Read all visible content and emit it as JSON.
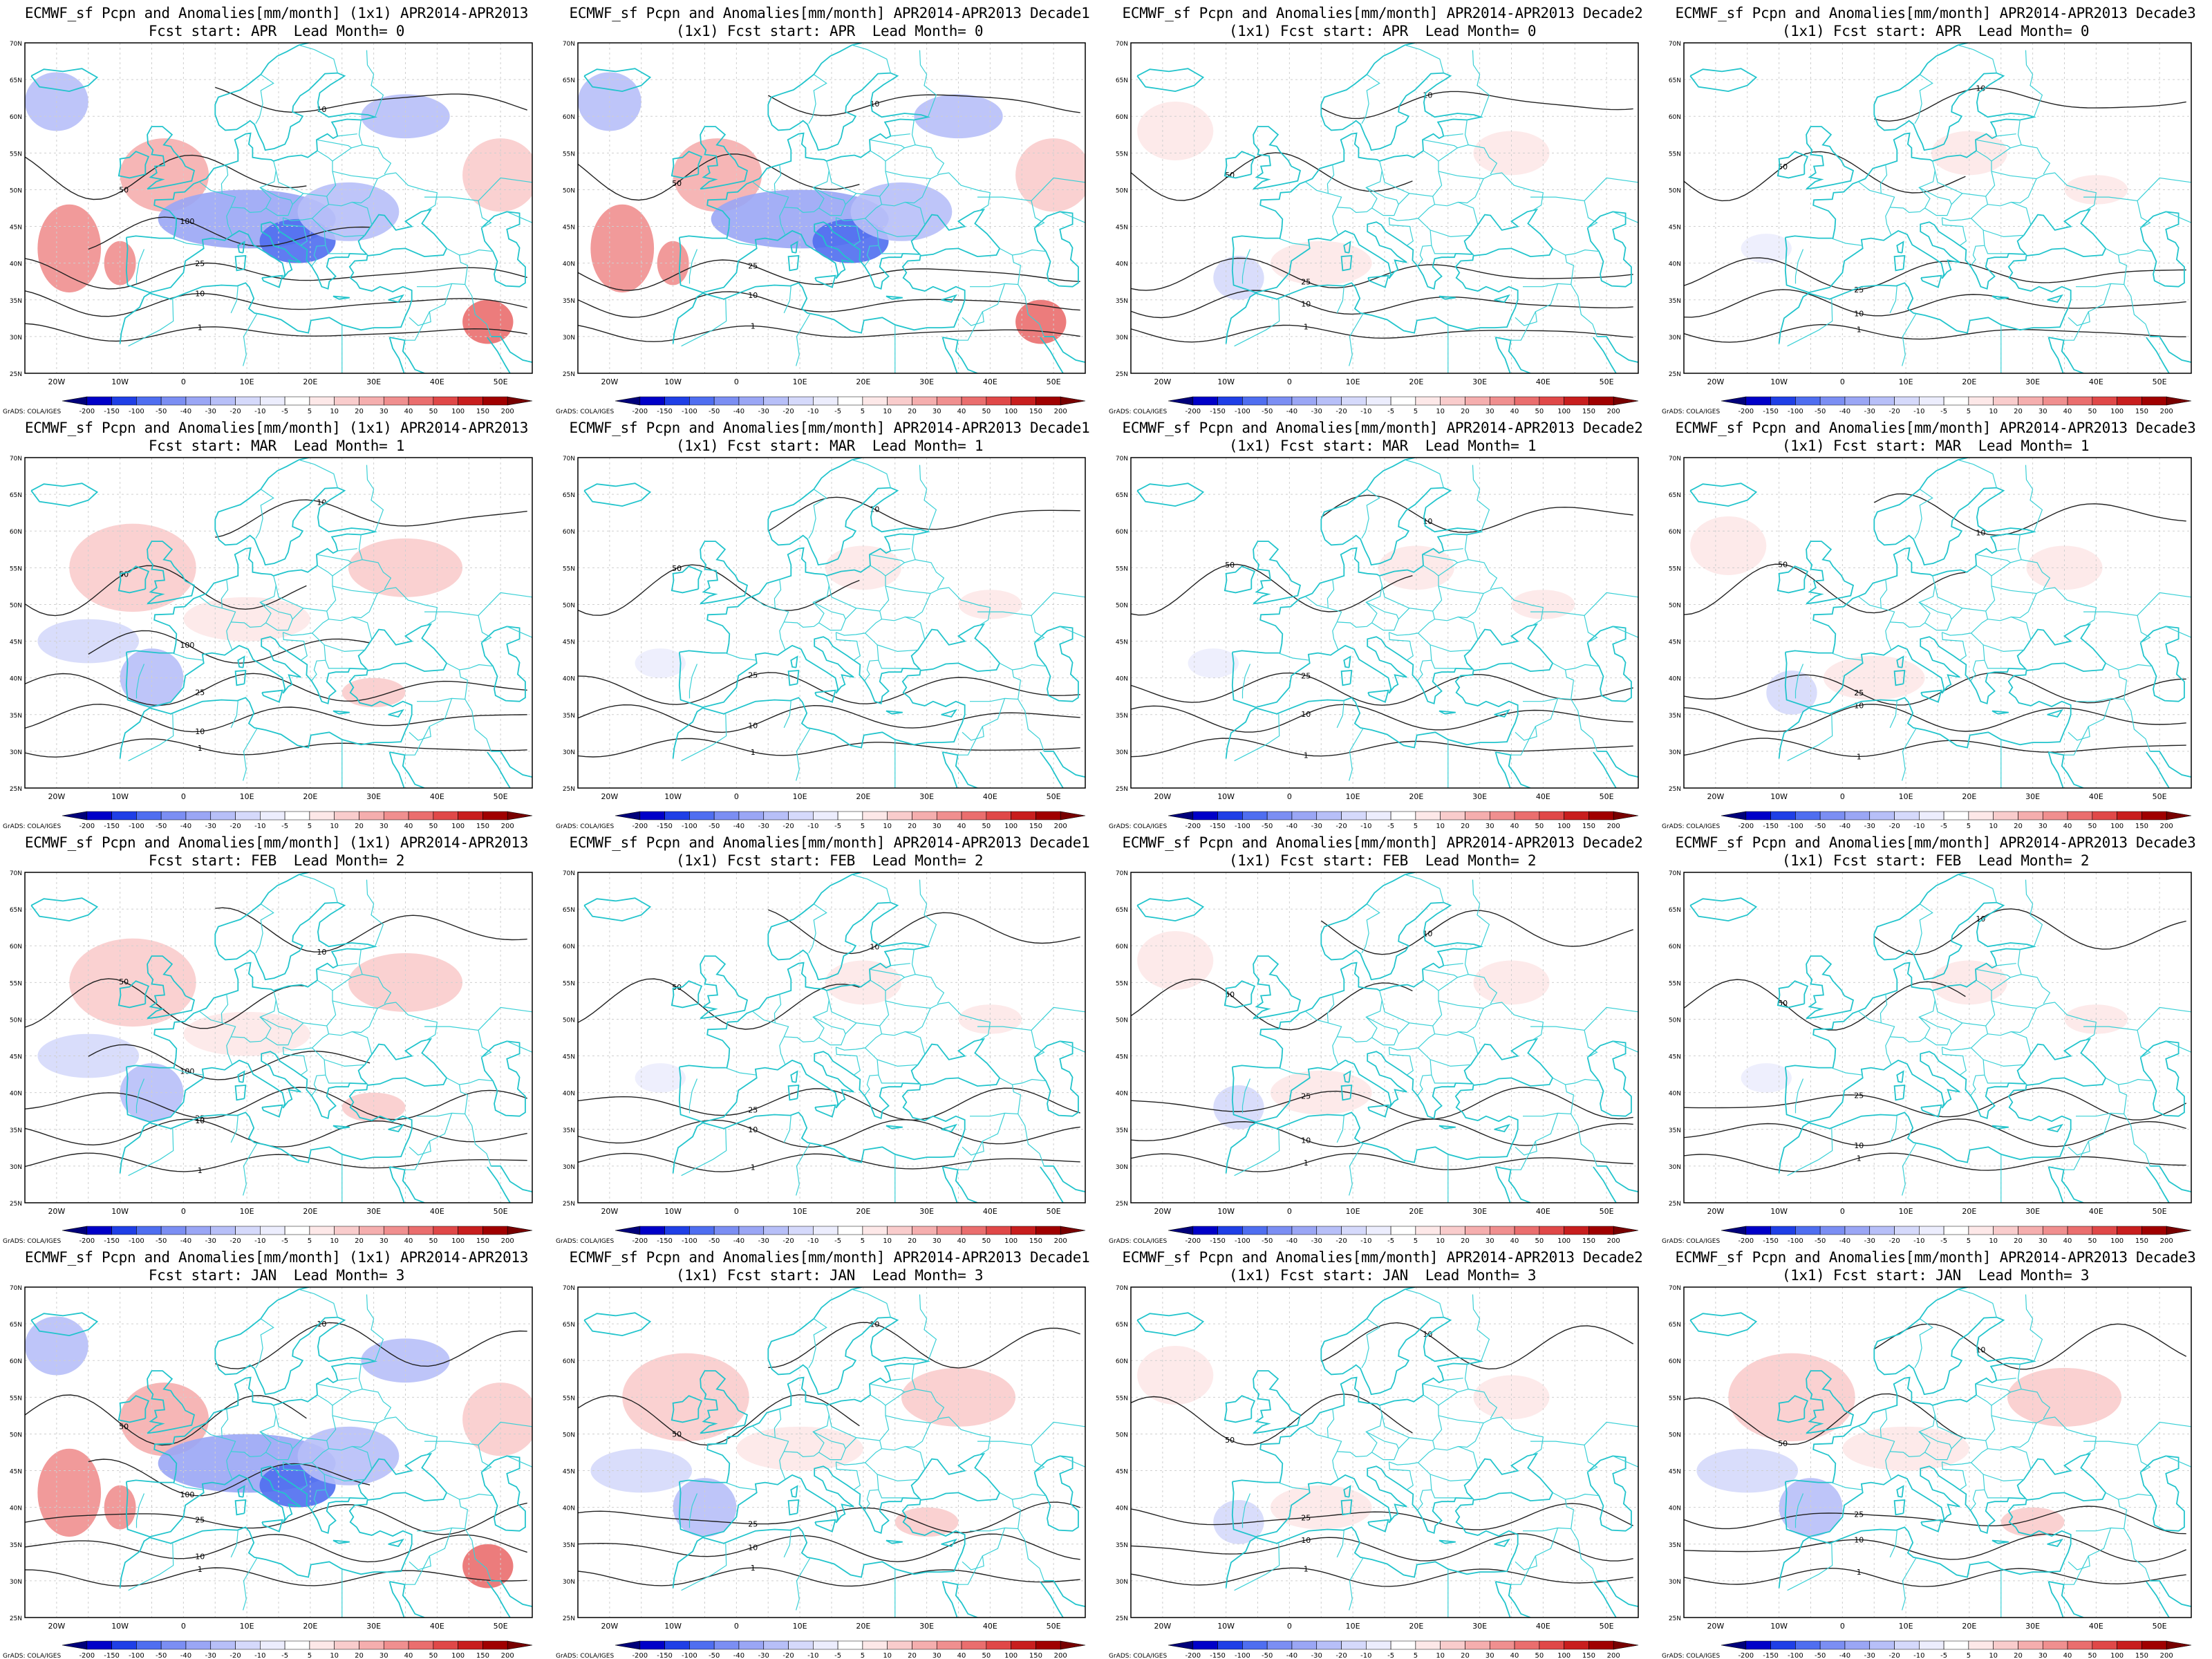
{
  "figure": {
    "credit": "GrADS: COLA/IGES",
    "lon_labels": [
      "20W",
      "10W",
      "0",
      "10E",
      "20E",
      "30E",
      "40E",
      "50E"
    ],
    "lat_labels": [
      "70N",
      "65N",
      "60N",
      "55N",
      "50N",
      "45N",
      "40N",
      "35N",
      "30N",
      "25N"
    ],
    "colorbar": {
      "labels": [
        "-200",
        "-150",
        "-100",
        "-50",
        "-40",
        "-30",
        "-20",
        "-10",
        "-5",
        "5",
        "10",
        "20",
        "30",
        "40",
        "50",
        "100",
        "150",
        "200"
      ],
      "colors": [
        "#00007a",
        "#0000c8",
        "#1f3fe6",
        "#4f6ef0",
        "#7b8ef3",
        "#9aa6f5",
        "#b7bff8",
        "#d5d9fb",
        "#ecedfd",
        "#ffffff",
        "#fde8e8",
        "#f9cccc",
        "#f5aeae",
        "#f08f8f",
        "#ea6e6e",
        "#e04848",
        "#c81e1e",
        "#a00000",
        "#780000"
      ]
    },
    "contour_labels": [
      "1",
      "10",
      "25",
      "50",
      "100"
    ]
  },
  "panels": [
    {
      "title1": "ECMWF_sf Pcpn and Anomalies[mm/month] (1x1) APR2014-APR2013",
      "title2": "Fcst start: APR  Lead Month= 0",
      "anom": "strong"
    },
    {
      "title1": "ECMWF_sf Pcpn and Anomalies[mm/month] APR2014-APR2013 Decade1",
      "title2": "(1x1) Fcst start: APR  Lead Month= 0",
      "anom": "strong"
    },
    {
      "title1": "ECMWF_sf Pcpn and Anomalies[mm/month] APR2014-APR2013 Decade2",
      "title2": "(1x1) Fcst start: APR  Lead Month= 0",
      "anom": "weak"
    },
    {
      "title1": "ECMWF_sf Pcpn and Anomalies[mm/month] APR2014-APR2013 Decade3",
      "title2": "(1x1) Fcst start: APR  Lead Month= 0",
      "anom": "faint"
    },
    {
      "title1": "ECMWF_sf Pcpn and Anomalies[mm/month] (1x1) APR2014-APR2013",
      "title2": "Fcst start: MAR  Lead Month= 1",
      "anom": "medium"
    },
    {
      "title1": "ECMWF_sf Pcpn and Anomalies[mm/month] APR2014-APR2013 Decade1",
      "title2": "(1x1) Fcst start: MAR  Lead Month= 1",
      "anom": "faint"
    },
    {
      "title1": "ECMWF_sf Pcpn and Anomalies[mm/month] APR2014-APR2013 Decade2",
      "title2": "(1x1) Fcst start: MAR  Lead Month= 1",
      "anom": "faint"
    },
    {
      "title1": "ECMWF_sf Pcpn and Anomalies[mm/month] APR2014-APR2013 Decade3",
      "title2": "(1x1) Fcst start: MAR  Lead Month= 1",
      "anom": "weak"
    },
    {
      "title1": "ECMWF_sf Pcpn and Anomalies[mm/month] (1x1) APR2014-APR2013",
      "title2": "Fcst start: FEB  Lead Month= 2",
      "anom": "medium"
    },
    {
      "title1": "ECMWF_sf Pcpn and Anomalies[mm/month] APR2014-APR2013 Decade1",
      "title2": "(1x1) Fcst start: FEB  Lead Month= 2",
      "anom": "faint"
    },
    {
      "title1": "ECMWF_sf Pcpn and Anomalies[mm/month] APR2014-APR2013 Decade2",
      "title2": "(1x1) Fcst start: FEB  Lead Month= 2",
      "anom": "weak"
    },
    {
      "title1": "ECMWF_sf Pcpn and Anomalies[mm/month] APR2014-APR2013 Decade3",
      "title2": "(1x1) Fcst start: FEB  Lead Month= 2",
      "anom": "faint"
    },
    {
      "title1": "ECMWF_sf Pcpn and Anomalies[mm/month] (1x1) APR2014-APR2013",
      "title2": "Fcst start: JAN  Lead Month= 3",
      "anom": "strong"
    },
    {
      "title1": "ECMWF_sf Pcpn and Anomalies[mm/month] APR2014-APR2013 Decade1",
      "title2": "(1x1) Fcst start: JAN  Lead Month= 3",
      "anom": "medium"
    },
    {
      "title1": "ECMWF_sf Pcpn and Anomalies[mm/month] APR2014-APR2013 Decade2",
      "title2": "(1x1) Fcst start: JAN  Lead Month= 3",
      "anom": "weak"
    },
    {
      "title1": "ECMWF_sf Pcpn and Anomalies[mm/month] APR2014-APR2013 Decade3",
      "title2": "(1x1) Fcst start: JAN  Lead Month= 3",
      "anom": "medium"
    }
  ]
}
